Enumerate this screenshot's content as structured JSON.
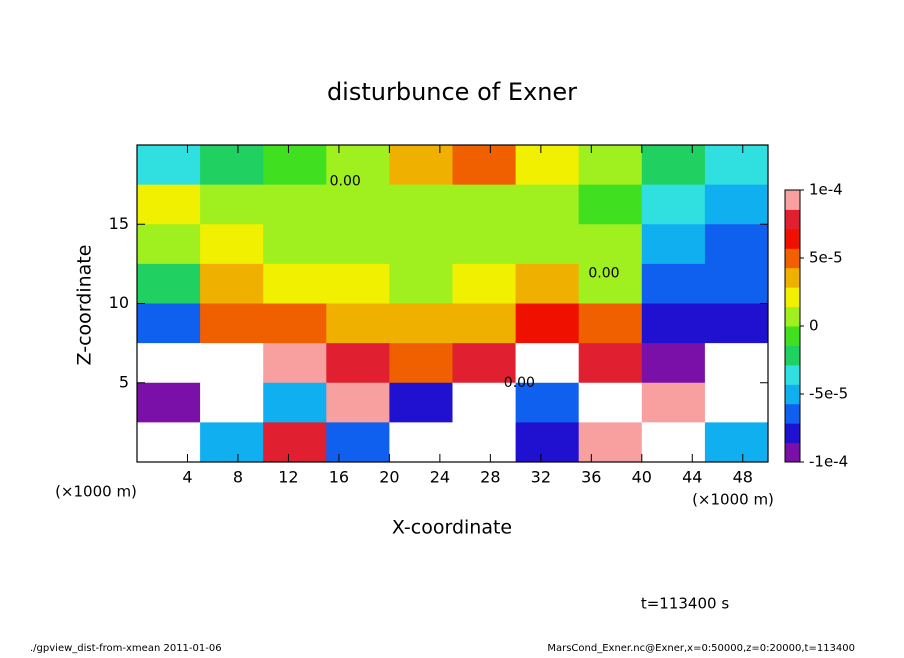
{
  "chart_data": {
    "type": "contour",
    "title": "disturbunce of Exner",
    "x_label": "X-coordinate",
    "y_label": "Z-coordinate",
    "x_unit": "(×1000 m)",
    "y_unit": "(×1000 m)",
    "xlim": [
      0,
      50
    ],
    "ylim": [
      0,
      20
    ],
    "xticks": [
      4,
      8,
      12,
      16,
      20,
      24,
      28,
      32,
      36,
      40,
      44,
      48
    ],
    "yticks": [
      5,
      10,
      15
    ],
    "x": [
      2.5,
      7.5,
      12.5,
      17.5,
      22.5,
      27.5,
      32.5,
      37.5,
      42.5,
      47.5
    ],
    "y": [
      18.75,
      16.25,
      13.75,
      11.25,
      8.75,
      6.25,
      3.75,
      1.25
    ],
    "z": [
      [
        -3e-05,
        -2e-05,
        -1e-05,
        0,
        4e-05,
        5e-05,
        2e-05,
        0,
        -2e-05,
        -3e-05
      ],
      [
        2e-05,
        1e-05,
        1e-05,
        0,
        1e-05,
        1e-05,
        0,
        -1e-05,
        -4e-05,
        -5e-05
      ],
      [
        1e-05,
        2e-05,
        1e-05,
        1e-05,
        1e-05,
        1e-05,
        1e-05,
        0,
        -5e-05,
        -6e-05
      ],
      [
        -2e-05,
        3e-05,
        2e-05,
        2e-05,
        1e-05,
        2e-05,
        3e-05,
        1e-05,
        -6e-05,
        -7e-05
      ],
      [
        -7e-05,
        5e-05,
        5e-05,
        4e-05,
        3e-05,
        4e-05,
        6e-05,
        5e-05,
        -8e-05,
        -8e-05
      ],
      [
        -0.00015,
        0.00015,
        0.0001,
        8e-05,
        5e-05,
        8e-05,
        0.00015,
        8e-05,
        -0.0001,
        -0.00015
      ],
      [
        -9e-05,
        0.00015,
        -5e-05,
        0.0001,
        -8e-05,
        0.00015,
        -6e-05,
        0.00015,
        0.0001,
        -0.00015
      ],
      [
        -0.00015,
        -5e-05,
        8e-05,
        -6e-05,
        0.00015,
        -0.00015,
        -8e-05,
        0.0001,
        -0.00015,
        -5e-05
      ]
    ],
    "zlim": [
      -0.0001,
      0.0001
    ],
    "colorbar_ticks": [
      {
        "value": 0.0001,
        "label": "1e-4"
      },
      {
        "value": 5e-05,
        "label": "5e-5"
      },
      0,
      {
        "value": -5e-05,
        "label": "-5e-5"
      },
      {
        "value": -0.0001,
        "label": "-1e-4"
      }
    ],
    "colors": [
      "#7a10a8",
      "#2010d0",
      "#1060f0",
      "#10b0f0",
      "#30e0e0",
      "#20d060",
      "#40e020",
      "#a0f020",
      "#f0f000",
      "#f0b000",
      "#f06000",
      "#f01000",
      "#e02030",
      "#f8a0a0"
    ],
    "out_of_range_color": "#ffffff",
    "contour_labels": [
      {
        "text": "0.00",
        "x": 16.5,
        "y": 17.7
      },
      {
        "text": "0.00",
        "x": 37.0,
        "y": 11.9
      },
      {
        "text": "0.00",
        "x": 30.3,
        "y": 5.0
      }
    ],
    "time_label": "t=113400 s",
    "footer_left": "./gpview_dist-from-xmean  2011-01-06",
    "footer_right": "MarsCond_Exner.nc@Exner,x=0:50000,z=0:20000,t=113400"
  }
}
